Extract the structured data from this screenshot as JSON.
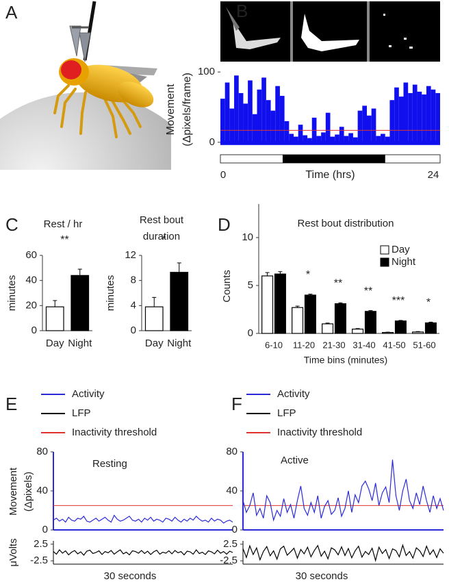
{
  "image_panel": {
    "panel": "A"
  },
  "chart_data": [
    {
      "panel": "B",
      "type": "area",
      "ylabel": [
        "Movement",
        "(Δpixels/frame)"
      ],
      "xlabel": "Time (hrs)",
      "x": [
        0,
        0.5,
        1,
        1.5,
        2,
        2.5,
        3,
        3.5,
        4,
        4.5,
        5,
        5.5,
        6,
        6.5,
        7,
        7.5,
        8,
        8.5,
        9,
        9.5,
        10,
        10.5,
        11,
        11.5,
        12,
        12.5,
        13,
        13.5,
        14,
        14.5,
        15,
        15.5,
        16,
        16.5,
        17,
        17.5,
        18,
        18.5,
        19,
        19.5,
        20,
        20.5,
        21,
        21.5,
        22,
        22.5,
        23,
        23.5
      ],
      "values": [
        62,
        85,
        48,
        95,
        70,
        55,
        88,
        40,
        75,
        92,
        60,
        45,
        80,
        66,
        30,
        12,
        8,
        25,
        10,
        6,
        35,
        9,
        14,
        42,
        8,
        11,
        22,
        9,
        13,
        7,
        45,
        52,
        38,
        48,
        9,
        12,
        8,
        60,
        78,
        65,
        85,
        70,
        82,
        72,
        68,
        80,
        75,
        70
      ],
      "color": "#1010ee",
      "threshold": 17,
      "threshold_color": "#e03030",
      "night": [
        6.8,
        18
      ],
      "xlim": [
        0,
        24
      ],
      "xticks": [
        0,
        24
      ],
      "ylim": [
        -7,
        105
      ],
      "yticks": [
        0,
        100
      ]
    },
    {
      "panel": "C",
      "type": "bar",
      "title": "Rest / hr",
      "ylabel": "minutes",
      "categories": [
        "Day",
        "Night"
      ],
      "values": [
        19,
        44
      ],
      "errors": [
        5,
        5
      ],
      "colors": [
        "#ffffff",
        "#000000"
      ],
      "ylim": [
        0,
        60
      ],
      "yticks": [
        0,
        20,
        40,
        60
      ],
      "annotation": "**"
    },
    {
      "type": "bar",
      "title": [
        "Rest bout",
        "duration"
      ],
      "ylabel": "minutes",
      "categories": [
        "Day",
        "Night"
      ],
      "values": [
        3.8,
        9.3
      ],
      "errors": [
        1.5,
        1.5
      ],
      "colors": [
        "#ffffff",
        "#000000"
      ],
      "ylim": [
        0,
        12
      ],
      "yticks": [
        0,
        4,
        8,
        12
      ],
      "annotation": "*"
    },
    {
      "panel": "D",
      "type": "bar",
      "title": "Rest bout distribution",
      "ylabel": "Counts",
      "xlabel": "Time bins (minutes)",
      "categories": [
        "6-10",
        "11-20",
        "21-30",
        "31-40",
        "41-50",
        "51-60"
      ],
      "series": [
        {
          "name": "Day",
          "color": "#ffffff",
          "values": [
            6.0,
            2.7,
            1.0,
            0.45,
            0.1,
            0.15
          ],
          "errors": [
            0.35,
            0.15,
            0.08,
            0.06,
            0.03,
            0.05
          ]
        },
        {
          "name": "Night",
          "color": "#000000",
          "values": [
            6.2,
            4.0,
            3.1,
            2.3,
            1.3,
            1.1
          ],
          "errors": [
            0.25,
            0.1,
            0.1,
            0.08,
            0.06,
            0.08
          ]
        }
      ],
      "annotations": [
        null,
        "*",
        "**",
        "**",
        "***",
        "*"
      ],
      "ylim": [
        0,
        13.5
      ],
      "yticks": [
        0,
        5,
        10
      ]
    },
    {
      "panel": "E",
      "type": "line",
      "ylabel": [
        "Movement",
        "(Δpixels)"
      ],
      "y2label": "μVolts",
      "xlabel": "30 seconds",
      "annotation": "Resting",
      "series": [
        {
          "name": "Activity",
          "color": "#2a2ad8",
          "values": [
            10,
            12,
            9,
            11,
            8,
            13,
            10,
            9,
            12,
            11,
            14,
            9,
            8,
            10,
            12,
            9,
            11,
            13,
            10,
            8,
            15,
            11,
            9,
            10,
            12,
            14,
            10,
            9,
            11,
            8,
            12,
            10,
            13,
            9,
            11,
            10,
            8,
            12,
            11,
            9,
            13,
            10,
            8,
            11,
            9,
            12,
            10,
            14,
            11,
            9,
            10,
            8,
            12,
            9,
            11,
            10,
            7,
            9,
            10,
            8
          ]
        },
        {
          "name": "LFP",
          "color": "#000000",
          "axis": "y2",
          "values": [
            0.3,
            -0.5,
            0.8,
            -0.2,
            0.5,
            -0.7,
            0.1,
            0.6,
            -0.4,
            0.2,
            -0.8,
            0.4,
            0.7,
            -0.3,
            0.0,
            0.5,
            -0.6,
            0.3,
            -0.1,
            0.6,
            -0.5,
            0.2,
            0.8,
            -0.4,
            0.1,
            -0.7,
            0.5,
            0.3,
            -0.2,
            0.6,
            -0.3,
            0.4,
            -0.6,
            0.2,
            0.7,
            -0.5,
            0.1,
            -0.2,
            0.5,
            -0.4,
            0.6,
            -0.1,
            0.3,
            -0.7,
            0.4,
            0.2,
            -0.5,
            0.8,
            -0.3,
            0.1,
            -0.6,
            0.5,
            0.2,
            -0.4,
            0.7,
            -0.2,
            0.3,
            -0.5,
            0.4,
            0.0
          ]
        },
        {
          "name": "Inactivity threshold",
          "color": "#e03030",
          "values": [
            25
          ]
        }
      ],
      "ylim": [
        0,
        80
      ],
      "yticks": [
        0,
        40,
        80
      ],
      "y2lim": [
        -3.5,
        3.5
      ],
      "y2ticks": [
        2.5,
        -2.5
      ]
    },
    {
      "panel": "F",
      "type": "line",
      "ylabel": null,
      "y2label": null,
      "xlabel": "30 seconds",
      "annotation": "Active",
      "series": [
        {
          "name": "Activity",
          "color": "#2a2ad8",
          "values": [
            30,
            18,
            25,
            38,
            15,
            22,
            12,
            35,
            28,
            10,
            20,
            14,
            32,
            18,
            26,
            12,
            30,
            45,
            22,
            15,
            28,
            18,
            35,
            12,
            24,
            30,
            16,
            20,
            33,
            14,
            22,
            40,
            18,
            36,
            28,
            45,
            50,
            42,
            30,
            48,
            25,
            38,
            44,
            28,
            72,
            35,
            20,
            40,
            52,
            30,
            22,
            38,
            26,
            45,
            30,
            18,
            35,
            22,
            32,
            20
          ]
        },
        {
          "name": "LFP",
          "color": "#000000",
          "axis": "y2",
          "values": [
            1.2,
            -1.5,
            2.0,
            -0.6,
            1.4,
            -2.2,
            0.3,
            1.8,
            -1.0,
            0.5,
            -2.0,
            1.1,
            1.9,
            -0.8,
            0.2,
            1.3,
            -1.7,
            0.9,
            -0.4,
            1.6,
            -1.3,
            0.6,
            2.1,
            -1.1,
            0.4,
            -1.9,
            1.4,
            0.8,
            -0.7,
            1.7,
            -0.9,
            1.2,
            -1.6,
            0.5,
            1.9,
            -1.4,
            0.3,
            -0.6,
            1.3,
            -2.4,
            1.6,
            -0.3,
            0.9,
            -1.8,
            1.1,
            0.6,
            -1.3,
            2.2,
            -0.9,
            0.3,
            -1.7,
            1.4,
            0.5,
            -1.2,
            1.9,
            -0.6,
            0.8,
            -1.5,
            1.1,
            -0.2
          ]
        },
        {
          "name": "Inactivity threshold",
          "color": "#e03030",
          "values": [
            25
          ]
        }
      ],
      "ylim": [
        0,
        80
      ],
      "yticks": [
        0,
        40,
        80
      ],
      "y2lim": [
        -3.5,
        3.5
      ],
      "y2ticks": [
        2.5,
        -2.5
      ]
    }
  ]
}
